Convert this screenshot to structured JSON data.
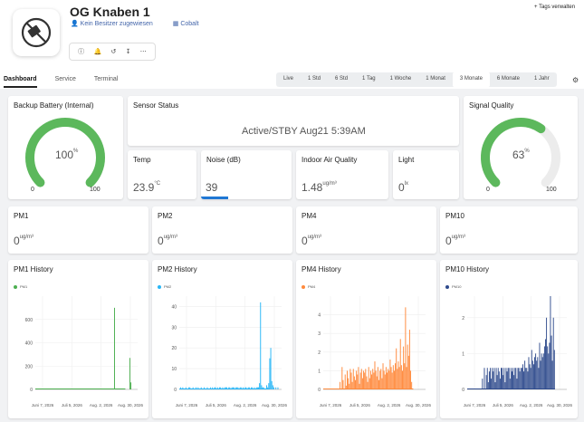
{
  "header": {
    "title": "OG Knaben 1",
    "owner": "Kein Besitzer zugewiesen",
    "org": "Cobalt",
    "tags_label": "Tags verwalten"
  },
  "tabs": [
    {
      "label": "Dashboard",
      "active": true
    },
    {
      "label": "Service",
      "active": false
    },
    {
      "label": "Terminal",
      "active": false
    }
  ],
  "ranges": [
    {
      "label": "Live",
      "active": false
    },
    {
      "label": "1 Std",
      "active": false
    },
    {
      "label": "6 Std",
      "active": false
    },
    {
      "label": "1 Tag",
      "active": false
    },
    {
      "label": "1 Woche",
      "active": false
    },
    {
      "label": "1 Monat",
      "active": false
    },
    {
      "label": "3 Monate",
      "active": true
    },
    {
      "label": "6 Monate",
      "active": false
    },
    {
      "label": "1 Jahr",
      "active": false
    }
  ],
  "battery": {
    "title": "Backup Battery (Internal)",
    "value": "100",
    "unit": "%",
    "fraction": 1.0,
    "min": "0",
    "max": "100",
    "color": "#5cb85c"
  },
  "status": {
    "title": "Sensor Status",
    "value": "Active/STBY Aug21 5:39AM"
  },
  "signal": {
    "title": "Signal Quality",
    "value": "63",
    "unit": "%",
    "fraction": 0.63,
    "min": "0",
    "max": "100",
    "color": "#5cb85c"
  },
  "temp": {
    "title": "Temp",
    "value": "23.9",
    "unit": "°C"
  },
  "noise": {
    "title": "Noise (dB)",
    "value": "39",
    "bar_fraction": 0.3,
    "bar_color": "#1f77d4"
  },
  "iaq": {
    "title": "Indoor Air Quality",
    "value": "1.48",
    "unit": "ug/m³"
  },
  "light": {
    "title": "Light",
    "value": "0",
    "unit": "lx"
  },
  "pm": [
    {
      "title": "PM1",
      "value": "0",
      "unit": "ug/m³"
    },
    {
      "title": "PM2",
      "value": "0",
      "unit": "ug/m³"
    },
    {
      "title": "PM4",
      "value": "0",
      "unit": "ug/m³"
    },
    {
      "title": "PM10",
      "value": "0",
      "unit": "ug/m³"
    }
  ],
  "chart_data": [
    {
      "type": "bar",
      "title": "PM1 History",
      "legend": "PM1",
      "color": "#4caf50",
      "ylim": [
        0,
        800
      ],
      "yticks": [
        "0",
        "200",
        "400",
        "600"
      ],
      "xticks": [
        "Juni 7, 2026",
        "Juli 5, 2026",
        "Aug. 2, 2026",
        "Aug. 30, 2026"
      ],
      "values": [
        0,
        0,
        0,
        0,
        0,
        0,
        0,
        0,
        0,
        0,
        0,
        0,
        0,
        0,
        0,
        0,
        0,
        0,
        0,
        0,
        0,
        0,
        0,
        0,
        0,
        0,
        0,
        0,
        0,
        0,
        0,
        0,
        0,
        0,
        0,
        0,
        0,
        0,
        0,
        0,
        0,
        0,
        0,
        0,
        0,
        0,
        0,
        0,
        0,
        0,
        0,
        0,
        0,
        0,
        0,
        0,
        0,
        0,
        0,
        0,
        0,
        0,
        0,
        0,
        0,
        0,
        0,
        0,
        0,
        0,
        0,
        0,
        0,
        0,
        0,
        0,
        0,
        700,
        0,
        0,
        0,
        0,
        0,
        0,
        0,
        0,
        0,
        0,
        0,
        0,
        0,
        0,
        270,
        60,
        0,
        0,
        0,
        0,
        0,
        0
      ]
    },
    {
      "type": "bar",
      "title": "PM2 History",
      "legend": "PM2",
      "color": "#29b6f6",
      "ylim": [
        0,
        45
      ],
      "yticks": [
        "0",
        "10",
        "20",
        "30",
        "40"
      ],
      "xticks": [
        "Juni 7, 2026",
        "Juli 5, 2026",
        "Aug. 2, 2026",
        "Aug. 30, 2026"
      ],
      "values": [
        0,
        1,
        0,
        1,
        0,
        0,
        1,
        0,
        0,
        1,
        1,
        0,
        0,
        1,
        0,
        0,
        1,
        0,
        1,
        0,
        0,
        1,
        0,
        0,
        1,
        0,
        0,
        1,
        0,
        0,
        1,
        0,
        1,
        0,
        1,
        1,
        0,
        1,
        0,
        1,
        1,
        0,
        1,
        0,
        1,
        1,
        1,
        0,
        1,
        1,
        0,
        1,
        1,
        1,
        0,
        1,
        1,
        1,
        0,
        1,
        1,
        0,
        1,
        0,
        1,
        1,
        0,
        1,
        1,
        0,
        1,
        1,
        0,
        1,
        0,
        1,
        1,
        1,
        3,
        42,
        2,
        1,
        1,
        0,
        0,
        2,
        1,
        3,
        15,
        20,
        4,
        2,
        1,
        0,
        1,
        0,
        1,
        0,
        0,
        0
      ]
    },
    {
      "type": "bar",
      "title": "PM4 History",
      "legend": "PM4",
      "color": "#ff8a3d",
      "ylim": [
        0,
        5
      ],
      "yticks": [
        "0",
        "1",
        "2",
        "3",
        "4"
      ],
      "xticks": [
        "Juni 7, 2026",
        "Juli 5, 2026",
        "Aug. 2, 2026",
        "Aug. 30, 2026"
      ],
      "values": [
        0,
        0,
        0,
        0,
        0,
        0,
        0,
        0,
        0,
        0,
        0,
        0,
        0,
        0,
        0,
        0,
        0.4,
        0,
        1.2,
        0.5,
        0,
        0.8,
        0.2,
        1.0,
        0.6,
        0.3,
        1.1,
        0.9,
        0.4,
        1.1,
        0.7,
        0.5,
        1.0,
        0.8,
        1.2,
        0.3,
        0.9,
        1.1,
        0.6,
        1.0,
        0.9,
        1.1,
        0.7,
        0.4,
        1.2,
        0.6,
        1.0,
        0.8,
        1.1,
        0.9,
        1.5,
        1.0,
        0.7,
        1.2,
        0.5,
        1.0,
        1.1,
        0.6,
        1.4,
        1.0,
        0.8,
        1.2,
        0.9,
        1.1,
        1.0,
        1.6,
        1.2,
        0.9,
        1.3,
        1.0,
        1.4,
        2.2,
        1.1,
        1.5,
        1.2,
        2.7,
        1.3,
        1.0,
        2.3,
        1.4,
        4.4,
        1.2,
        2.4,
        1.8,
        3.2,
        1.0,
        0.4,
        0,
        0,
        0,
        0,
        0,
        0,
        0,
        0,
        0,
        0,
        0,
        0,
        0
      ]
    },
    {
      "type": "bar",
      "title": "PM10 History",
      "legend": "PM10",
      "color": "#2e4a8c",
      "ylim": [
        0,
        2.6
      ],
      "yticks": [
        "0",
        "1",
        "2"
      ],
      "xticks": [
        "Juni 7, 2026",
        "Juli 5, 2026",
        "Aug. 2, 2026",
        "Aug. 30, 2026"
      ],
      "values": [
        0,
        0,
        0,
        0,
        0,
        0,
        0,
        0,
        0,
        0,
        0,
        0,
        0,
        0,
        0,
        0.3,
        0,
        0.6,
        0,
        0.4,
        0.6,
        0.2,
        0.5,
        0.6,
        0.3,
        0.6,
        0.5,
        0.6,
        0.2,
        0.6,
        0.4,
        0.6,
        0.5,
        0.3,
        0.6,
        0.6,
        0.4,
        0.6,
        0.2,
        0.6,
        0.5,
        0.6,
        0.6,
        0.3,
        0.6,
        0.5,
        0.6,
        0.4,
        0.6,
        0.6,
        0.3,
        0.6,
        0.6,
        0.5,
        0.6,
        0.6,
        0.7,
        0.5,
        0.8,
        0.6,
        0.6,
        0.5,
        0.9,
        0.7,
        0.6,
        1.1,
        0.8,
        0.7,
        0.9,
        1.0,
        0.8,
        0.9,
        0.6,
        1.3,
        0.8,
        1.0,
        0.9,
        1.0,
        1.2,
        1.4,
        2.0,
        1.2,
        1.0,
        1.3,
        2.6,
        1.5,
        0.8,
        2.0,
        1.1,
        0,
        0,
        0,
        0,
        0,
        0,
        0,
        0,
        0,
        0,
        0,
        0
      ]
    }
  ]
}
